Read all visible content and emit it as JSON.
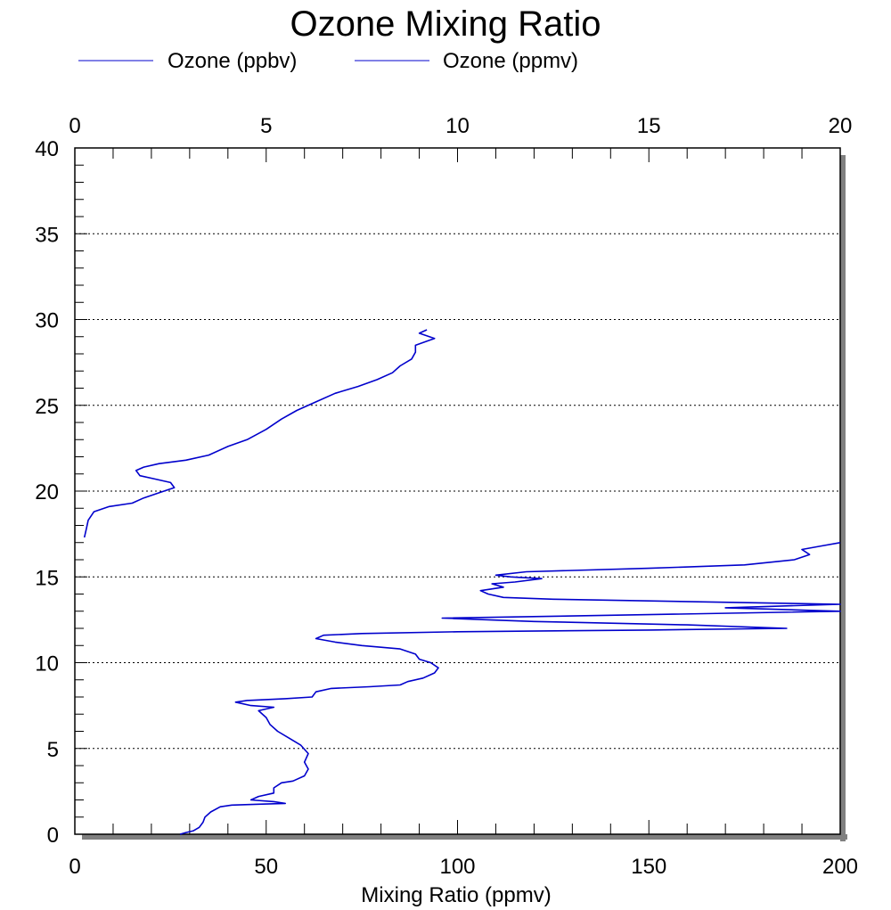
{
  "chart_data": {
    "type": "line",
    "title": "Ozone Mixing Ratio",
    "xlabel": "Mixing Ratio (ppmv)",
    "ylabel": "",
    "x_bottom_lim": [
      0,
      200
    ],
    "x_top_lim": [
      0,
      20
    ],
    "ylim": [
      0,
      40
    ],
    "x_bottom_ticks": [
      "0",
      "50",
      "100",
      "150",
      "200"
    ],
    "x_top_ticks": [
      "0",
      "5",
      "10",
      "15",
      "20"
    ],
    "y_ticks": [
      "0",
      "5",
      "10",
      "15",
      "20",
      "25",
      "30",
      "35",
      "40"
    ],
    "grid": "horizontal dotted lines at major y ticks",
    "legend_position": "top",
    "colors": {
      "series": "#0000cc",
      "shadow": "#808080",
      "axis": "#000000",
      "grid": "#000000"
    },
    "series": [
      {
        "name": "Ozone (ppbv)",
        "axis": "bottom",
        "points": [
          [
            27.5,
            0
          ],
          [
            29,
            0.1
          ],
          [
            31,
            0.2
          ],
          [
            32.5,
            0.4
          ],
          [
            33.5,
            0.7
          ],
          [
            34,
            1.0
          ],
          [
            35.5,
            1.3
          ],
          [
            38,
            1.6
          ],
          [
            41,
            1.7
          ],
          [
            48,
            1.75
          ],
          [
            55,
            1.8
          ],
          [
            52,
            1.9
          ],
          [
            46,
            2.0
          ],
          [
            48,
            2.2
          ],
          [
            52,
            2.4
          ],
          [
            52,
            2.7
          ],
          [
            54,
            3.0
          ],
          [
            57,
            3.1
          ],
          [
            60,
            3.4
          ],
          [
            61,
            3.8
          ],
          [
            60,
            4.2
          ],
          [
            61,
            4.7
          ],
          [
            59,
            5.2
          ],
          [
            56,
            5.6
          ],
          [
            53,
            6.0
          ],
          [
            51,
            6.4
          ],
          [
            50,
            6.8
          ],
          [
            48,
            7.2
          ],
          [
            52,
            7.4
          ],
          [
            46,
            7.5
          ],
          [
            42,
            7.7
          ],
          [
            45,
            7.8
          ],
          [
            55,
            7.9
          ],
          [
            62,
            8.0
          ],
          [
            63,
            8.3
          ],
          [
            67,
            8.5
          ],
          [
            77,
            8.6
          ],
          [
            85,
            8.7
          ],
          [
            87,
            8.9
          ],
          [
            91,
            9.1
          ],
          [
            94,
            9.4
          ],
          [
            95,
            9.7
          ],
          [
            93,
            10.0
          ],
          [
            90,
            10.2
          ],
          [
            89,
            10.5
          ],
          [
            85,
            10.8
          ],
          [
            75,
            11.0
          ],
          [
            68,
            11.2
          ],
          [
            63,
            11.4
          ],
          [
            65,
            11.6
          ],
          [
            75,
            11.7
          ],
          [
            100,
            11.8
          ],
          [
            150,
            11.9
          ],
          [
            186,
            12.0
          ],
          [
            160,
            12.2
          ],
          [
            120,
            12.4
          ],
          [
            108,
            12.5
          ],
          [
            96,
            12.6
          ],
          [
            150,
            12.8
          ],
          [
            200,
            13.0
          ],
          [
            170,
            13.2
          ],
          [
            200,
            13.4
          ],
          [
            150,
            13.6
          ],
          [
            125,
            13.7
          ],
          [
            112,
            13.8
          ],
          [
            108,
            14.0
          ],
          [
            106,
            14.2
          ],
          [
            112,
            14.4
          ],
          [
            109,
            14.6
          ],
          [
            115,
            14.7
          ],
          [
            122,
            14.9
          ],
          [
            114,
            15.0
          ],
          [
            110,
            15.1
          ],
          [
            118,
            15.3
          ],
          [
            150,
            15.5
          ],
          [
            175,
            15.7
          ],
          [
            188,
            16.0
          ],
          [
            192,
            16.3
          ],
          [
            190,
            16.6
          ],
          [
            195,
            16.8
          ],
          [
            200,
            17.0
          ]
        ]
      },
      {
        "name": "Ozone (ppmv)",
        "axis": "top",
        "points": [
          [
            0.25,
            17.3
          ],
          [
            0.3,
            17.8
          ],
          [
            0.35,
            18.3
          ],
          [
            0.5,
            18.8
          ],
          [
            0.9,
            19.1
          ],
          [
            1.5,
            19.3
          ],
          [
            1.8,
            19.6
          ],
          [
            2.2,
            19.9
          ],
          [
            2.6,
            20.2
          ],
          [
            2.5,
            20.5
          ],
          [
            2.1,
            20.7
          ],
          [
            1.7,
            20.9
          ],
          [
            1.6,
            21.2
          ],
          [
            1.8,
            21.4
          ],
          [
            2.2,
            21.6
          ],
          [
            2.9,
            21.8
          ],
          [
            3.5,
            22.1
          ],
          [
            4.0,
            22.6
          ],
          [
            4.5,
            23.0
          ],
          [
            5.0,
            23.6
          ],
          [
            5.4,
            24.2
          ],
          [
            5.8,
            24.7
          ],
          [
            6.3,
            25.2
          ],
          [
            6.8,
            25.7
          ],
          [
            7.4,
            26.1
          ],
          [
            7.9,
            26.5
          ],
          [
            8.3,
            26.9
          ],
          [
            8.5,
            27.3
          ],
          [
            8.8,
            27.7
          ],
          [
            8.9,
            28.1
          ],
          [
            8.9,
            28.5
          ],
          [
            9.4,
            28.9
          ],
          [
            9.0,
            29.2
          ],
          [
            9.2,
            29.4
          ]
        ]
      }
    ]
  }
}
